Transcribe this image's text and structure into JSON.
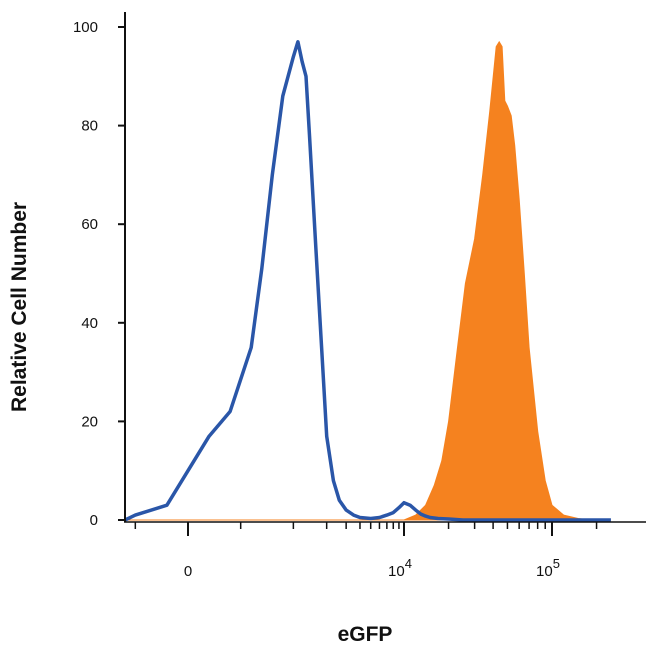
{
  "chart_data": {
    "type": "area",
    "title": "",
    "xlabel": "eGFP",
    "ylabel": "Relative Cell Number",
    "x_scale": "biexponential",
    "xlim": [
      -2000,
      250000
    ],
    "ylim": [
      0,
      100
    ],
    "y_ticks": [
      0,
      20,
      40,
      60,
      80,
      100
    ],
    "x_ticks": [
      {
        "value": 0,
        "base": "0",
        "exp": ""
      },
      {
        "value": 10000,
        "base": "10",
        "exp": "4"
      },
      {
        "value": 100000,
        "base": "10",
        "exp": "5"
      }
    ],
    "grid": false,
    "legend": "none",
    "series": [
      {
        "style": "outline",
        "color": "#2a56a8",
        "x": [
          -2000,
          -1000,
          -500,
          -200,
          0,
          200,
          400,
          600,
          700,
          800,
          900,
          1000,
          1100,
          1200,
          1300,
          1400,
          1600,
          1800,
          2000,
          2300,
          2600,
          3000,
          3500,
          4000,
          5000,
          6000,
          7000,
          8000,
          9000,
          10000,
          11000,
          12000,
          13000,
          14000,
          15000,
          17000,
          20000,
          25000,
          30000,
          50000,
          100000,
          250000
        ],
        "y": [
          0,
          0,
          1,
          3,
          10,
          17,
          22,
          35,
          51,
          70,
          86,
          94,
          97,
          93,
          90,
          78,
          55,
          35,
          17,
          8,
          4,
          2,
          1,
          0.5,
          0.3,
          0.5,
          1,
          1.5,
          2.5,
          3.5,
          3,
          2,
          1.2,
          0.8,
          0.5,
          0.3,
          0.2,
          0,
          0,
          0,
          0,
          0
        ]
      },
      {
        "style": "filled",
        "color": "#f5821f",
        "x": [
          -2000,
          10000,
          12000,
          14000,
          16000,
          18000,
          20000,
          23000,
          26000,
          30000,
          34000,
          38000,
          42000,
          44000,
          46000,
          48000,
          50000,
          53000,
          56000,
          60000,
          65000,
          70000,
          80000,
          90000,
          100000,
          120000,
          150000,
          180000,
          250000
        ],
        "y": [
          0,
          0,
          1,
          3,
          7,
          12,
          20,
          35,
          48,
          57,
          70,
          83,
          96,
          97,
          96,
          85,
          84,
          82,
          76,
          65,
          50,
          35,
          18,
          8,
          3,
          1,
          0.3,
          0,
          0
        ]
      }
    ]
  }
}
